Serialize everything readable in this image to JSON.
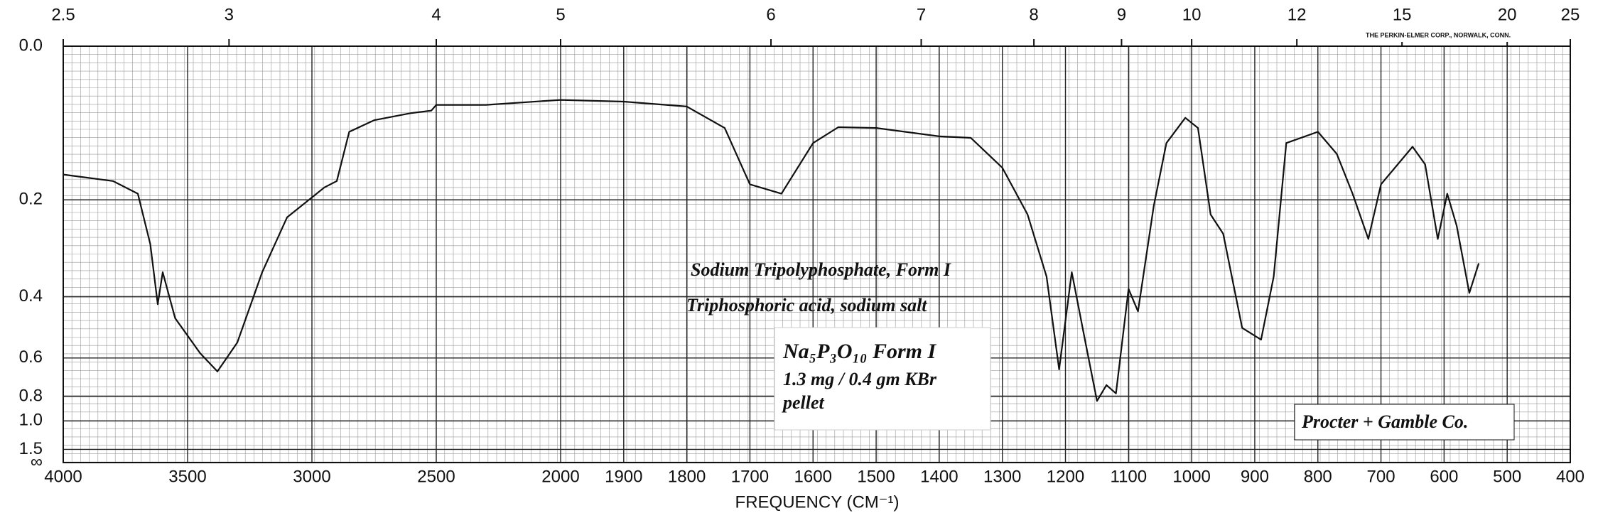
{
  "chart_data": {
    "type": "line",
    "x_label": "FREQUENCY (CM⁻¹)",
    "xlim": [
      4000,
      400
    ],
    "x_scale_change": 2000,
    "xticks": [
      4000,
      3500,
      3000,
      2500,
      2000,
      1900,
      1800,
      1700,
      1600,
      1500,
      1400,
      1300,
      1200,
      1100,
      1000,
      900,
      800,
      700,
      600,
      500,
      400
    ],
    "top_ticks": [
      2.5,
      3,
      4,
      5,
      6,
      7,
      8,
      9,
      10,
      12,
      15,
      20,
      25
    ],
    "ylim": [
      0,
      null
    ],
    "y_scale": "absorbance",
    "yticks": [
      {
        "value": 0,
        "label": "0.0"
      },
      0.2,
      0.4,
      0.6,
      0.8,
      {
        "value": 1.0,
        "label": "1.0"
      },
      1.5,
      {
        "value": null,
        "label": "∞"
      }
    ],
    "grid": true,
    "color": "#111111",
    "x": [
      4000,
      3800,
      3700,
      3650,
      3620,
      3600,
      3550,
      3450,
      3380,
      3300,
      3200,
      3100,
      2950,
      2900,
      2850,
      2750,
      2600,
      2520,
      2500,
      2300,
      2000,
      1900,
      1800,
      1740,
      1700,
      1650,
      1600,
      1560,
      1500,
      1400,
      1350,
      1300,
      1260,
      1230,
      1210,
      1190,
      1170,
      1150,
      1135,
      1120,
      1100,
      1085,
      1060,
      1040,
      1010,
      990,
      970,
      950,
      920,
      890,
      870,
      850,
      800,
      770,
      745,
      720,
      700,
      650,
      630,
      610,
      595,
      580,
      560,
      545
    ],
    "values": [
      0.16,
      0.17,
      0.19,
      0.28,
      0.42,
      0.34,
      0.46,
      0.58,
      0.66,
      0.54,
      0.34,
      0.23,
      0.18,
      0.17,
      0.1,
      0.085,
      0.076,
      0.073,
      0.066,
      0.066,
      0.06,
      0.062,
      0.068,
      0.095,
      0.175,
      0.19,
      0.115,
      0.094,
      0.095,
      0.106,
      0.108,
      0.15,
      0.225,
      0.35,
      0.65,
      0.34,
      0.52,
      0.83,
      0.73,
      0.78,
      0.38,
      0.44,
      0.21,
      0.115,
      0.082,
      0.095,
      0.225,
      0.26,
      0.49,
      0.53,
      0.35,
      0.115,
      0.1,
      0.13,
      0.19,
      0.27,
      0.175,
      0.12,
      0.145,
      0.27,
      0.19,
      0.245,
      0.39,
      0.32
    ],
    "annotations": [
      "Sodium Tripolyphosphate, Form I",
      "Triphosphoric acid, sodium salt",
      "Na₅P₃O₁₀  Form I",
      "1.3 mg / 0.4 gm KBr",
      "pellet",
      "Procter + Gamble Co.",
      "THE PERKIN-ELMER CORP., NORWALK, CONN."
    ]
  }
}
